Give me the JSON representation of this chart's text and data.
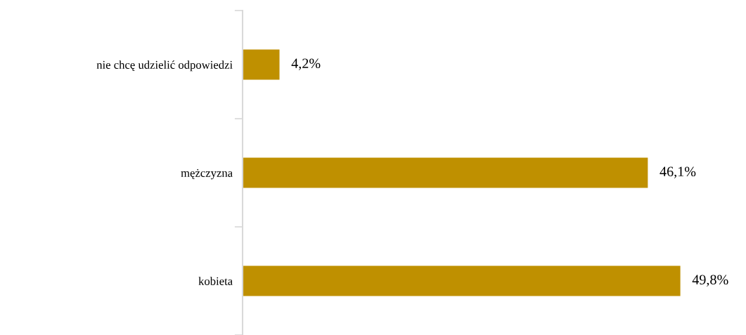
{
  "chart_data": {
    "type": "bar",
    "orientation": "horizontal",
    "categories": [
      "nie chcę udzielić odpowiedzi",
      "mężczyzna",
      "kobieta"
    ],
    "values": [
      4.2,
      46.1,
      49.8
    ],
    "color": "#bf9000",
    "value_labels": [
      "4,2%",
      "46,1%",
      "49,8%"
    ],
    "grid": false,
    "legend": false
  }
}
